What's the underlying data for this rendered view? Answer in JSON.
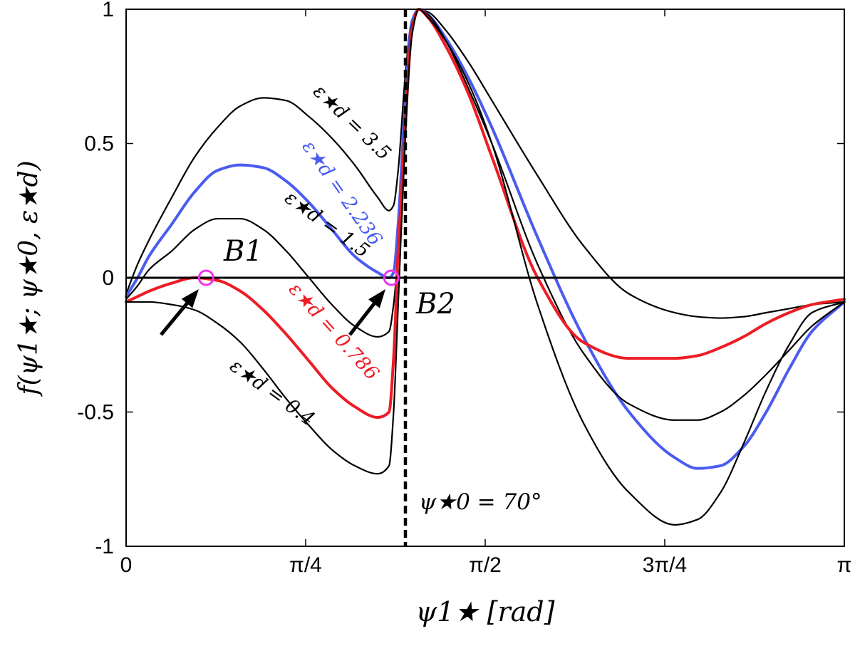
{
  "chart_data": {
    "type": "line",
    "xlabel": "ψ1★ [rad]",
    "ylabel": "f(ψ1★; ψ★0, ε★d)",
    "xlim": [
      0,
      3.14159
    ],
    "ylim": [
      -1,
      1
    ],
    "x_ticks": [
      {
        "value": 0,
        "label": "0"
      },
      {
        "value": 0.7854,
        "label": "π/4"
      },
      {
        "value": 1.5708,
        "label": "π/2"
      },
      {
        "value": 2.3562,
        "label": "3π/4"
      },
      {
        "value": 3.14159,
        "label": "π"
      }
    ],
    "y_ticks": [
      {
        "value": 1,
        "label": "1"
      },
      {
        "value": 0.5,
        "label": "0.5"
      },
      {
        "value": 0,
        "label": "0"
      },
      {
        "value": -0.5,
        "label": "-0.5"
      },
      {
        "value": -1,
        "label": "-1"
      }
    ],
    "grid": false,
    "legend": "none",
    "reference_lines": [
      {
        "axis": "y",
        "value": 0,
        "style": "solid",
        "color": "#000000"
      },
      {
        "axis": "x",
        "value": 1.2217,
        "style": "dashed",
        "color": "#000000",
        "label": "ψ★0 = 70°"
      }
    ],
    "series": [
      {
        "name": "ε★d = 3.5",
        "color": "#000000",
        "x": [
          0,
          0.05,
          0.1,
          0.2,
          0.3,
          0.4,
          0.5,
          0.6,
          0.7,
          0.8,
          0.9,
          1.0,
          1.1,
          1.15,
          1.17,
          1.19,
          1.22,
          1.25,
          1.28,
          1.32,
          1.4,
          1.5,
          1.6,
          1.8,
          2.0,
          2.2,
          2.4,
          2.5,
          2.6,
          2.7,
          2.8,
          2.9,
          3.0,
          3.1416
        ],
        "y": [
          -0.06,
          0.05,
          0.14,
          0.3,
          0.45,
          0.56,
          0.64,
          0.67,
          0.66,
          0.6,
          0.52,
          0.42,
          0.3,
          0.25,
          0.27,
          0.4,
          0.74,
          0.96,
          1.0,
          0.99,
          0.92,
          0.8,
          0.66,
          0.38,
          0.12,
          -0.06,
          -0.13,
          -0.145,
          -0.15,
          -0.145,
          -0.13,
          -0.115,
          -0.1,
          -0.09
        ]
      },
      {
        "name": "ε★d = 2.236",
        "color": "#4a5cf0",
        "x": [
          0,
          0.05,
          0.1,
          0.2,
          0.3,
          0.4,
          0.5,
          0.6,
          0.7,
          0.8,
          0.9,
          1.0,
          1.1,
          1.15,
          1.17,
          1.19,
          1.22,
          1.25,
          1.28,
          1.32,
          1.4,
          1.5,
          1.6,
          1.8,
          2.0,
          2.2,
          2.4,
          2.5,
          2.6,
          2.7,
          2.8,
          2.9,
          3.0,
          3.1416
        ],
        "y": [
          -0.07,
          0.0,
          0.08,
          0.2,
          0.32,
          0.4,
          0.42,
          0.41,
          0.36,
          0.28,
          0.18,
          0.08,
          0.02,
          0.0,
          0.02,
          0.2,
          0.64,
          0.95,
          1.0,
          0.98,
          0.89,
          0.74,
          0.56,
          0.15,
          -0.22,
          -0.5,
          -0.67,
          -0.71,
          -0.7,
          -0.63,
          -0.5,
          -0.34,
          -0.2,
          -0.09
        ]
      },
      {
        "name": "ε★d = 1.5",
        "color": "#000000",
        "x": [
          0,
          0.05,
          0.1,
          0.2,
          0.3,
          0.4,
          0.5,
          0.6,
          0.7,
          0.8,
          0.9,
          1.0,
          1.1,
          1.15,
          1.17,
          1.19,
          1.22,
          1.25,
          1.28,
          1.32,
          1.4,
          1.5,
          1.6,
          1.8,
          2.0,
          2.2,
          2.4,
          2.5,
          2.6,
          2.7,
          2.8,
          2.9,
          3.0,
          3.1416
        ],
        "y": [
          -0.08,
          -0.03,
          0.03,
          0.1,
          0.18,
          0.22,
          0.22,
          0.18,
          0.1,
          0.0,
          -0.1,
          -0.18,
          -0.22,
          -0.2,
          -0.1,
          0.1,
          0.6,
          0.94,
          1.0,
          0.98,
          0.88,
          0.7,
          0.5,
          0.05,
          -0.28,
          -0.47,
          -0.53,
          -0.53,
          -0.5,
          -0.44,
          -0.36,
          -0.27,
          -0.18,
          -0.09
        ]
      },
      {
        "name": "ε★d = 0.786",
        "color": "#ee1c24",
        "x": [
          0,
          0.05,
          0.1,
          0.2,
          0.3,
          0.4,
          0.5,
          0.6,
          0.7,
          0.8,
          0.9,
          1.0,
          1.1,
          1.15,
          1.17,
          1.19,
          1.22,
          1.25,
          1.28,
          1.32,
          1.4,
          1.5,
          1.6,
          1.8,
          2.0,
          2.2,
          2.4,
          2.5,
          2.6,
          2.7,
          2.8,
          2.9,
          3.0,
          3.1416
        ],
        "y": [
          -0.09,
          -0.07,
          -0.05,
          -0.02,
          0.0,
          -0.01,
          -0.05,
          -0.12,
          -0.21,
          -0.31,
          -0.41,
          -0.48,
          -0.52,
          -0.5,
          -0.3,
          0.1,
          0.55,
          0.92,
          1.0,
          0.97,
          0.86,
          0.68,
          0.45,
          0.0,
          -0.24,
          -0.3,
          -0.3,
          -0.29,
          -0.26,
          -0.22,
          -0.17,
          -0.13,
          -0.1,
          -0.08
        ]
      },
      {
        "name": "ε★d = 0.4",
        "color": "#000000",
        "x": [
          0,
          0.05,
          0.1,
          0.2,
          0.3,
          0.4,
          0.5,
          0.6,
          0.7,
          0.8,
          0.9,
          1.0,
          1.1,
          1.15,
          1.17,
          1.19,
          1.22,
          1.25,
          1.28,
          1.32,
          1.4,
          1.5,
          1.6,
          1.8,
          2.0,
          2.2,
          2.4,
          2.5,
          2.6,
          2.7,
          2.8,
          2.9,
          3.0,
          3.1416
        ],
        "y": [
          -0.09,
          -0.09,
          -0.09,
          -0.1,
          -0.12,
          -0.17,
          -0.24,
          -0.34,
          -0.45,
          -0.55,
          -0.64,
          -0.7,
          -0.73,
          -0.7,
          -0.5,
          -0.1,
          0.5,
          0.9,
          1.0,
          0.97,
          0.88,
          0.72,
          0.5,
          -0.1,
          -0.54,
          -0.8,
          -0.92,
          -0.9,
          -0.8,
          -0.62,
          -0.42,
          -0.25,
          -0.13,
          -0.09
        ]
      }
    ],
    "markers": [
      {
        "label": "B1",
        "x": 0.35,
        "y": 0.0,
        "color": "#ee33ee"
      },
      {
        "label": "B2",
        "x": 1.16,
        "y": 0.0,
        "color": "#ee33ee"
      }
    ],
    "annotations": [
      {
        "text": "ε★d = 3.5",
        "series": "ε★d = 3.5"
      },
      {
        "text": "ε★d = 2.236",
        "series": "ε★d = 2.236"
      },
      {
        "text": "ε★d = 1.5",
        "series": "ε★d = 1.5"
      },
      {
        "text": "ε★d = 0.786",
        "series": "ε★d = 0.786"
      },
      {
        "text": "ε★d = 0.4",
        "series": "ε★d = 0.4"
      },
      {
        "text": "ψ★0 = 70°"
      }
    ]
  }
}
